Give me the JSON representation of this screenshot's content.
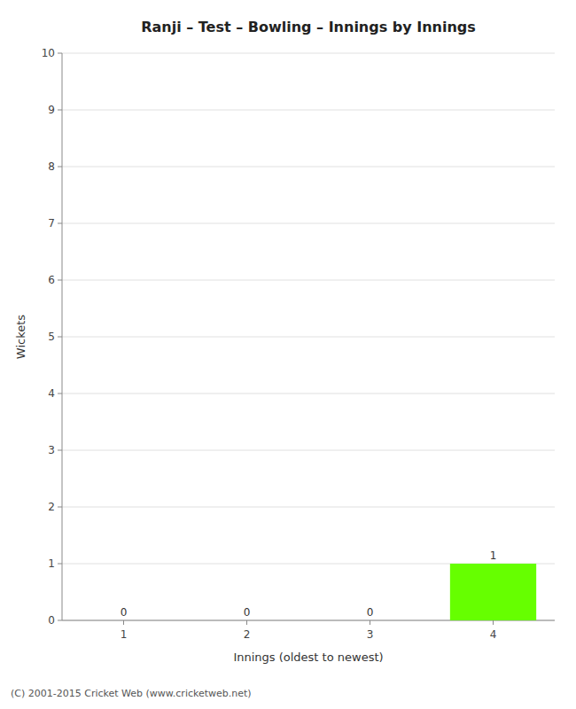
{
  "chart_data": {
    "type": "bar",
    "title": "Ranji – Test – Bowling – Innings by Innings",
    "x_label": "Innings (oldest to newest)",
    "y_label": "Wickets",
    "x": [
      1,
      2,
      3,
      4
    ],
    "values": [
      0,
      0,
      0,
      1
    ],
    "color": "#66ff00",
    "xlim": [
      0.5,
      4.5
    ],
    "xticks": [
      1,
      2,
      3,
      4
    ],
    "ylim": [
      0,
      10
    ],
    "yticks": [
      0,
      1,
      2,
      3,
      4,
      5,
      6,
      7,
      8,
      9,
      10
    ],
    "grid": true,
    "data_labels": true,
    "footer": "(C) 2001-2015 Cricket Web (www.cricketweb.net)"
  }
}
